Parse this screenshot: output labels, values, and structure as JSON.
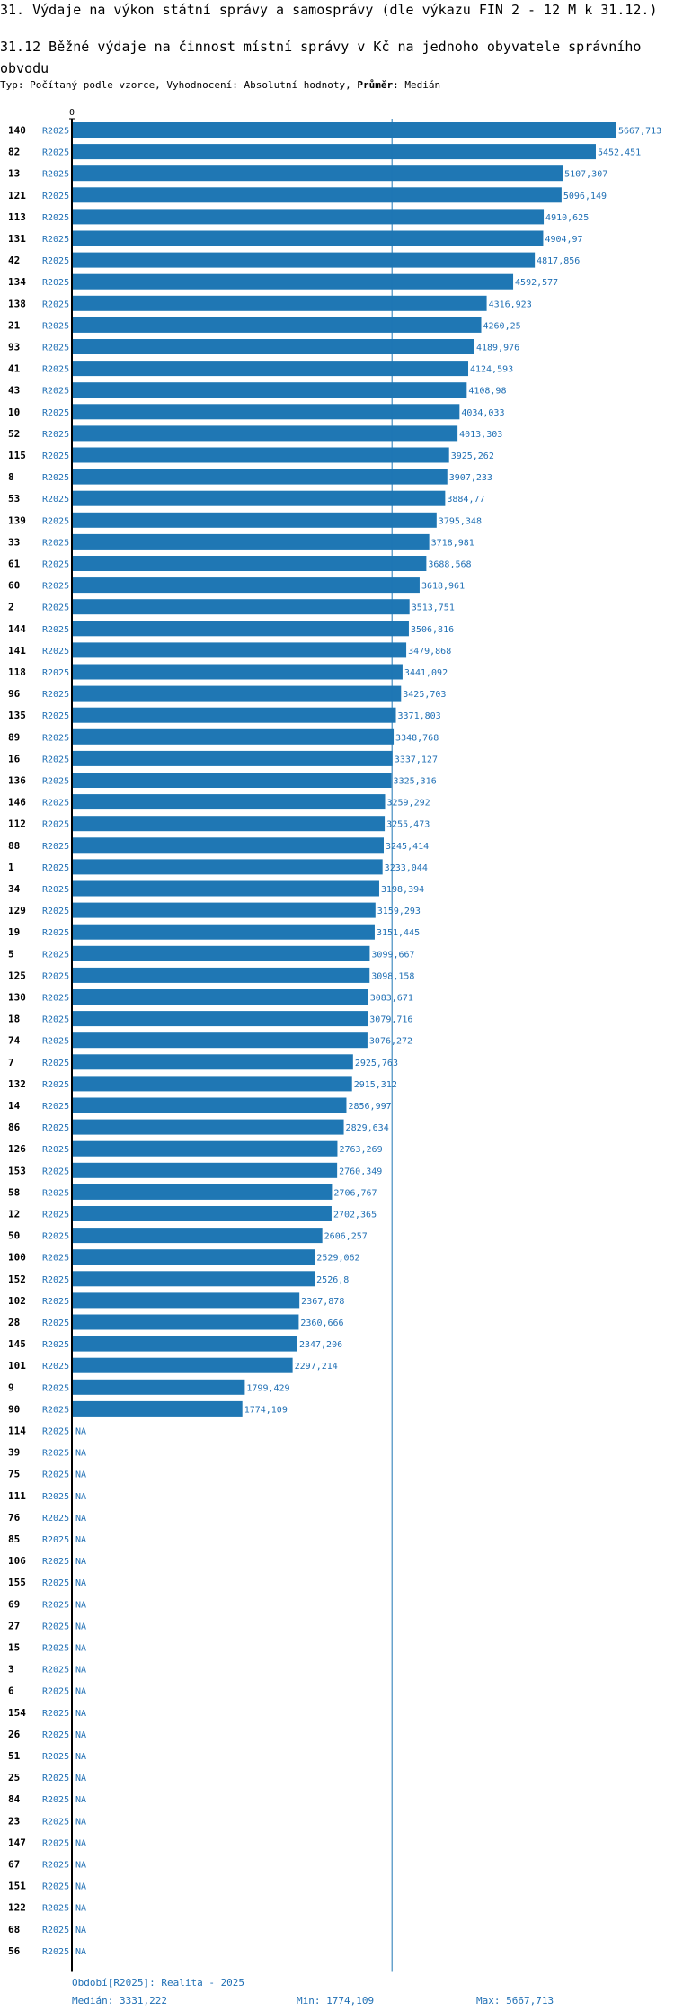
{
  "header": {
    "title": "31. Výdaje na výkon státní správy a samosprávy (dle výkazu FIN 2 - 12 M k 31.12.)",
    "subtitle": "31.12 Běžné výdaje na činnost místní správy v Kč na jednoho obyvatele správního obvodu",
    "desc_prefix": "Typ: Počítaný podle vzorce, Vyhodnocení: Absolutní hodnoty, ",
    "desc_bold": "Průměr",
    "desc_suffix": ": Medián"
  },
  "footer": {
    "period": "Období[R2025]: Realita - 2025",
    "median": "Medián: 3331,222",
    "min": "Min: 1774,109",
    "max": "Max: 5667,713"
  },
  "colors": {
    "bar": "#1f77b4",
    "label": "#1f6fb4",
    "axis": "#000000",
    "median_line": "#1f77b4"
  },
  "chart_data": {
    "type": "bar",
    "orientation": "horizontal",
    "axis_tick": "0",
    "period_label": "R2025",
    "na_label": "NA",
    "median": 3331.222,
    "xlim": [
      0,
      5667.713
    ],
    "categories": [
      "140",
      "82",
      "13",
      "121",
      "113",
      "131",
      "42",
      "134",
      "138",
      "21",
      "93",
      "41",
      "43",
      "10",
      "52",
      "115",
      "8",
      "53",
      "139",
      "33",
      "61",
      "60",
      "2",
      "144",
      "141",
      "118",
      "96",
      "135",
      "89",
      "16",
      "136",
      "146",
      "112",
      "88",
      "1",
      "34",
      "129",
      "19",
      "5",
      "125",
      "130",
      "18",
      "74",
      "7",
      "132",
      "14",
      "86",
      "126",
      "153",
      "58",
      "12",
      "50",
      "100",
      "152",
      "102",
      "28",
      "145",
      "101",
      "9",
      "90",
      "114",
      "39",
      "75",
      "111",
      "76",
      "85",
      "106",
      "155",
      "69",
      "27",
      "15",
      "3",
      "6",
      "154",
      "26",
      "51",
      "25",
      "84",
      "23",
      "147",
      "67",
      "151",
      "122",
      "68",
      "56"
    ],
    "values": [
      5667.713,
      5452.451,
      5107.307,
      5096.149,
      4910.625,
      4904.97,
      4817.856,
      4592.577,
      4316.923,
      4260.25,
      4189.976,
      4124.593,
      4108.98,
      4034.033,
      4013.303,
      3925.262,
      3907.233,
      3884.77,
      3795.348,
      3718.981,
      3688.568,
      3618.961,
      3513.751,
      3506.816,
      3479.868,
      3441.092,
      3425.703,
      3371.803,
      3348.768,
      3337.127,
      3325.316,
      3259.292,
      3255.473,
      3245.414,
      3233.044,
      3198.394,
      3159.293,
      3151.445,
      3099.667,
      3098.158,
      3083.671,
      3079.716,
      3076.272,
      2925.763,
      2915.312,
      2856.997,
      2829.634,
      2763.269,
      2760.349,
      2706.767,
      2702.365,
      2606.257,
      2529.062,
      2526.8,
      2367.878,
      2360.666,
      2347.206,
      2297.214,
      1799.429,
      1774.109,
      null,
      null,
      null,
      null,
      null,
      null,
      null,
      null,
      null,
      null,
      null,
      null,
      null,
      null,
      null,
      null,
      null,
      null,
      null,
      null,
      null,
      null,
      null,
      null,
      null
    ],
    "value_labels": [
      "5667,713",
      "5452,451",
      "5107,307",
      "5096,149",
      "4910,625",
      "4904,97",
      "4817,856",
      "4592,577",
      "4316,923",
      "4260,25",
      "4189,976",
      "4124,593",
      "4108,98",
      "4034,033",
      "4013,303",
      "3925,262",
      "3907,233",
      "3884,77",
      "3795,348",
      "3718,981",
      "3688,568",
      "3618,961",
      "3513,751",
      "3506,816",
      "3479,868",
      "3441,092",
      "3425,703",
      "3371,803",
      "3348,768",
      "3337,127",
      "3325,316",
      "3259,292",
      "3255,473",
      "3245,414",
      "3233,044",
      "3198,394",
      "3159,293",
      "3151,445",
      "3099,667",
      "3098,158",
      "3083,671",
      "3079,716",
      "3076,272",
      "2925,763",
      "2915,312",
      "2856,997",
      "2829,634",
      "2763,269",
      "2760,349",
      "2706,767",
      "2702,365",
      "2606,257",
      "2529,062",
      "2526,8",
      "2367,878",
      "2360,666",
      "2347,206",
      "2297,214",
      "1799,429",
      "1774,109",
      "NA",
      "NA",
      "NA",
      "NA",
      "NA",
      "NA",
      "NA",
      "NA",
      "NA",
      "NA",
      "NA",
      "NA",
      "NA",
      "NA",
      "NA",
      "NA",
      "NA",
      "NA",
      "NA",
      "NA",
      "NA",
      "NA",
      "NA",
      "NA",
      "NA"
    ]
  }
}
